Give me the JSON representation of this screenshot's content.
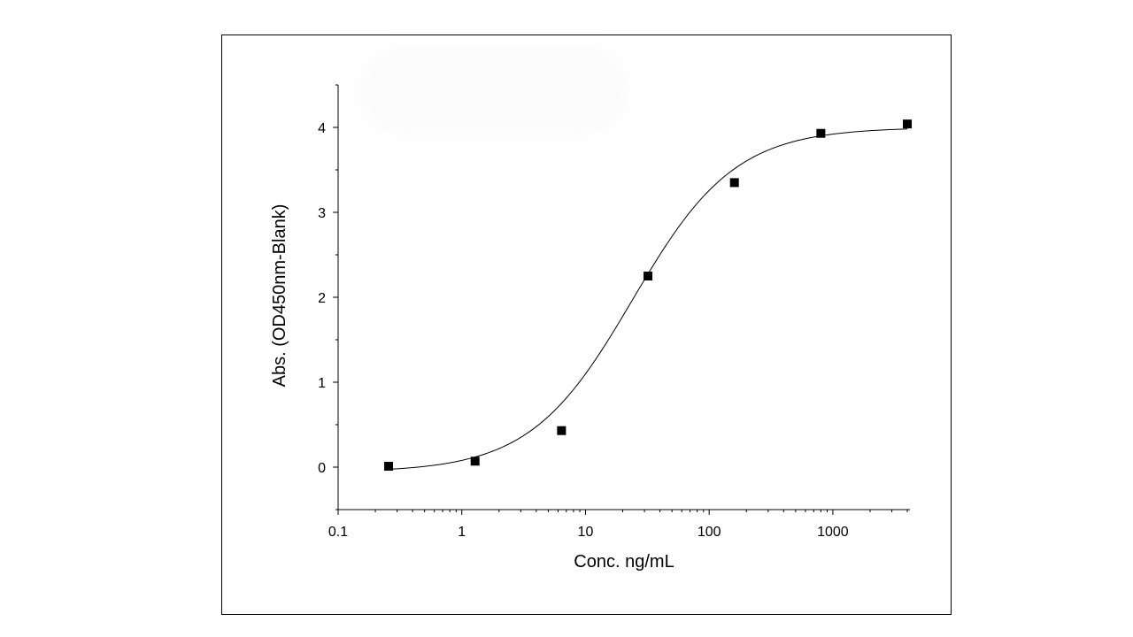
{
  "chart_data": {
    "type": "scatter",
    "title": "",
    "xlabel": "Conc. ng/mL",
    "ylabel": "Abs. (OD450nm-Blank)",
    "x_scale": "log",
    "xlim": [
      0.1,
      4200
    ],
    "ylim": [
      -0.5,
      4.5
    ],
    "x_ticks": [
      {
        "value": 0.1,
        "label": "0.1"
      },
      {
        "value": 1,
        "label": "1"
      },
      {
        "value": 10,
        "label": "10"
      },
      {
        "value": 100,
        "label": "100"
      },
      {
        "value": 1000,
        "label": "1000"
      }
    ],
    "y_ticks": [
      {
        "value": 0,
        "label": "0"
      },
      {
        "value": 1,
        "label": "1"
      },
      {
        "value": 2,
        "label": "2"
      },
      {
        "value": 3,
        "label": "3"
      },
      {
        "value": 4,
        "label": "4"
      }
    ],
    "grid": false,
    "legend": "none",
    "series": [
      {
        "marker": "square",
        "color": "#000000",
        "points": [
          {
            "x": 0.256,
            "y": 0.01
          },
          {
            "x": 1.28,
            "y": 0.07
          },
          {
            "x": 6.4,
            "y": 0.43
          },
          {
            "x": 32,
            "y": 2.25
          },
          {
            "x": 160,
            "y": 3.35
          },
          {
            "x": 800,
            "y": 3.93
          },
          {
            "x": 4000,
            "y": 4.04
          }
        ]
      }
    ],
    "fit_curve": {
      "type": "four-parameter-logistic",
      "color": "#000000",
      "bottom": -0.06,
      "top": 4.0,
      "ec50": 24,
      "hill": 1.05,
      "x_range": [
        0.256,
        4000
      ]
    }
  }
}
